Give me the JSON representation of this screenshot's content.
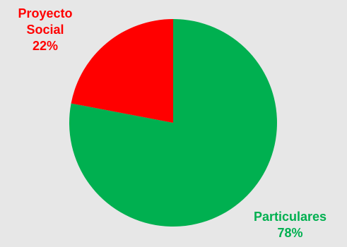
{
  "chart_data": {
    "type": "pie",
    "slices": [
      {
        "name": "Particulares",
        "percent_label": "78%",
        "value": 78,
        "color": "#00b050"
      },
      {
        "name": "Proyecto Social",
        "percent_label": "22%",
        "value": 22,
        "color": "#ff0000"
      }
    ],
    "labels": {
      "proyecto_line1": "Proyecto",
      "proyecto_line2": "Social",
      "proyecto_pct": "22%",
      "particulares_line1": "Particulares",
      "particulares_pct": "78%"
    },
    "title": "",
    "legend": "none"
  }
}
